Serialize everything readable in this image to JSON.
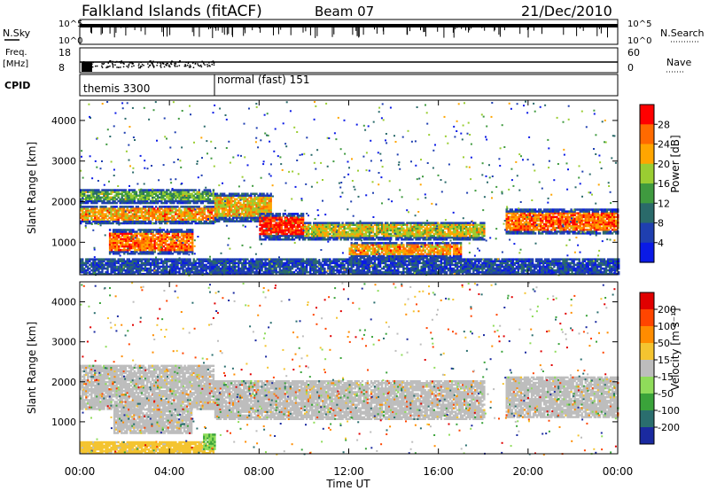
{
  "header": {
    "station": "Falkland Islands (fitACF)",
    "beam": "Beam 07",
    "date": "21/Dec/2010"
  },
  "top_panels": {
    "nsky_label": "N.Sky",
    "nsearch_label": "N.Search",
    "freq_label_1": "Freq.",
    "freq_label_2": "[MHz]",
    "nave_label": "Nave",
    "cpid_label": "CPID",
    "nsky_ticks": [
      "10^5",
      "10^0"
    ],
    "nsearch_ticks": [
      "10^5",
      "10^0"
    ],
    "freq_ticks": [
      "18",
      "8"
    ],
    "nave_ticks": [
      "60",
      "0"
    ],
    "cpid_segments": [
      {
        "label": "themis 3300",
        "start_hour": 0,
        "end_hour": 6
      },
      {
        "label": "normal (fast) 151",
        "start_hour": 6,
        "end_hour": 24
      }
    ]
  },
  "axes": {
    "xlabel": "Time UT",
    "ylabel": "Slant Range [km]",
    "x_ticks": [
      "00:00",
      "04:00",
      "08:00",
      "12:00",
      "16:00",
      "20:00",
      "00:00"
    ],
    "y_ticks": [
      "1000",
      "2000",
      "3000",
      "4000"
    ]
  },
  "colorbars": {
    "power": {
      "label": "Power [dB]",
      "ticks": [
        "4",
        "8",
        "12",
        "16",
        "20",
        "24",
        "28"
      ],
      "colors": [
        "#0a1ae6",
        "#1f3fb0",
        "#2a6a6a",
        "#3f9a3f",
        "#9acd32",
        "#ffa500",
        "#ff6a00",
        "#ff0000"
      ]
    },
    "velocity": {
      "label": "Velocity [m s⁻¹]",
      "ticks": [
        "200",
        "100",
        "50",
        "15",
        "-15",
        "-50",
        "-100",
        "-200"
      ],
      "colors": [
        "#1a2aa0",
        "#2a6e6e",
        "#3aa33a",
        "#8fdc5a",
        "#bdbdbd",
        "#f4c430",
        "#ff8c00",
        "#ff4500",
        "#e00000"
      ]
    }
  },
  "chart_data": [
    {
      "type": "heatmap",
      "title": "Power",
      "xlabel": "Time UT",
      "ylabel": "Slant Range [km]",
      "xlim": [
        0,
        24
      ],
      "ylim": [
        200,
        4500
      ],
      "colorbar_label": "Power [dB]",
      "colorbar_range": [
        0,
        30
      ],
      "bands": [
        {
          "t": [
            0.0,
            6.0
          ],
          "r": [
            1450,
            1900
          ],
          "value": 22
        },
        {
          "t": [
            0.0,
            6.0
          ],
          "r": [
            1950,
            2300
          ],
          "value": 14
        },
        {
          "t": [
            1.3,
            5.0
          ],
          "r": [
            700,
            1300
          ],
          "value": 24
        },
        {
          "t": [
            6.0,
            8.5
          ],
          "r": [
            1500,
            2200
          ],
          "value": 20
        },
        {
          "t": [
            8.0,
            10.0
          ],
          "r": [
            1050,
            1700
          ],
          "value": 28
        },
        {
          "t": [
            10.0,
            18.0
          ],
          "r": [
            1050,
            1500
          ],
          "value": 18
        },
        {
          "t": [
            12.0,
            17.0
          ],
          "r": [
            600,
            1000
          ],
          "value": 22
        },
        {
          "t": [
            19.0,
            24.0
          ],
          "r": [
            1200,
            1800
          ],
          "value": 24
        },
        {
          "t": [
            0.0,
            24.0
          ],
          "r": [
            200,
            600
          ],
          "value": 6
        }
      ]
    },
    {
      "type": "heatmap",
      "title": "Velocity",
      "xlabel": "Time UT",
      "ylabel": "Slant Range [km]",
      "xlim": [
        0,
        24
      ],
      "ylim": [
        200,
        4500
      ],
      "colorbar_label": "Velocity [m s⁻¹]",
      "colorbar_range": [
        -200,
        200
      ],
      "bands": [
        {
          "t": [
            0.0,
            6.0
          ],
          "r": [
            1300,
            2400
          ],
          "value": 0
        },
        {
          "t": [
            1.5,
            5.0
          ],
          "r": [
            700,
            1300
          ],
          "value": 0
        },
        {
          "t": [
            6.0,
            18.0
          ],
          "r": [
            1050,
            2000
          ],
          "value": 0
        },
        {
          "t": [
            19.0,
            24.0
          ],
          "r": [
            1100,
            2100
          ],
          "value": 0
        },
        {
          "t": [
            0.0,
            6.0
          ],
          "r": [
            200,
            500
          ],
          "value": 40
        },
        {
          "t": [
            5.5,
            6.0
          ],
          "r": [
            300,
            700
          ],
          "value": -60
        }
      ]
    }
  ]
}
